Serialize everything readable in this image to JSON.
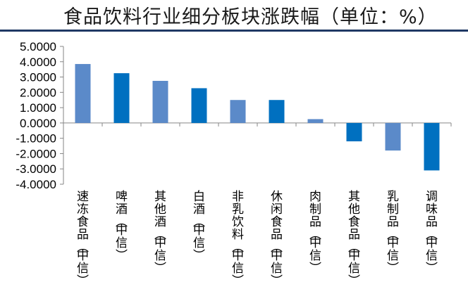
{
  "title": "食品饮料行业细分板块涨跌幅（单位：%）",
  "colors": {
    "bar_light": "#5b8ac9",
    "bar_dark": "#0070c0",
    "axis": "#868686",
    "rule": "#1f3864"
  },
  "chart_data": {
    "type": "bar",
    "title": "食品饮料行业细分板块涨跌幅（单位：%）",
    "categories": [
      "速冻食品(中信)",
      "啤酒(中信)",
      "其他酒(中信)",
      "白酒(中信)",
      "非乳饮料(中信)",
      "休闲食品(中信)",
      "肉制品(中信)",
      "其他食品(中信)",
      "乳制品(中信)",
      "调味品(中信)"
    ],
    "values": [
      3.85,
      3.25,
      2.75,
      2.27,
      1.5,
      1.5,
      0.25,
      -1.2,
      -1.8,
      -3.1
    ],
    "ylim": [
      -4,
      5
    ],
    "yticks": [
      "-4.0000",
      "-3.0000",
      "-2.0000",
      "-1.0000",
      "0.0000",
      "1.0000",
      "2.0000",
      "3.0000",
      "4.0000",
      "5.0000"
    ],
    "grid": false,
    "legend": "none"
  }
}
